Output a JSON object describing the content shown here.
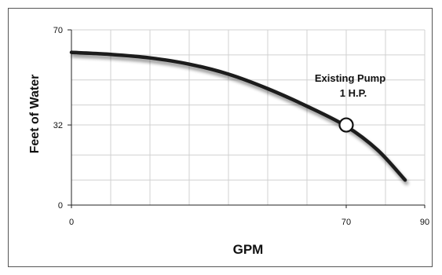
{
  "chart_data": {
    "type": "line",
    "title": "",
    "xlabel": "GPM",
    "ylabel": "Feet of Water",
    "xlim": [
      0,
      90
    ],
    "ylim": [
      0,
      70
    ],
    "x_ticks": [
      0,
      70,
      90
    ],
    "y_ticks": [
      0,
      32,
      70
    ],
    "grid": true,
    "series": [
      {
        "name": "Existing Pump 1 H.P.",
        "x": [
          0,
          10,
          20,
          30,
          40,
          50,
          60,
          70,
          78,
          85
        ],
        "y": [
          61,
          60.2,
          58.8,
          56.3,
          52.3,
          46.5,
          39.5,
          31.5,
          22,
          10
        ]
      }
    ],
    "operating_point": {
      "x": 70,
      "y": 32
    },
    "annotation": {
      "line1": "Existing Pump",
      "line2": "1 H.P."
    },
    "colors": {
      "curve": "#1a1a1a",
      "grid": "#d0d0d0",
      "dashed": "#555555",
      "frame": "#555555"
    }
  }
}
